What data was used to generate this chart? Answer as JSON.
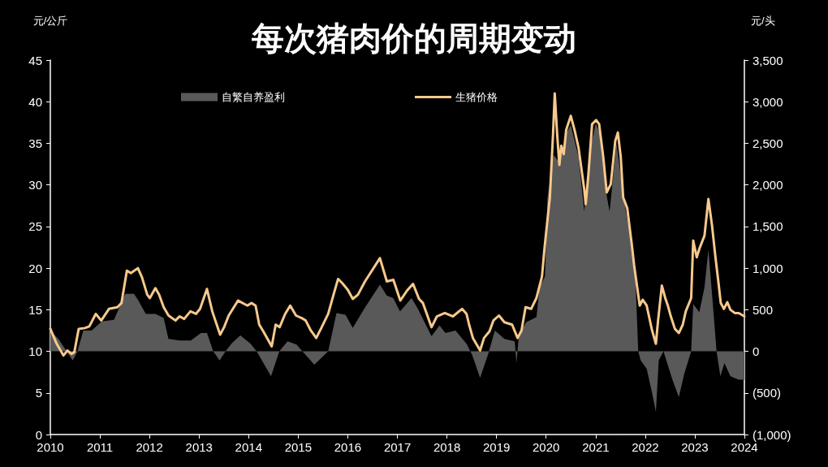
{
  "chart_data": {
    "type": "line",
    "title": "每次猪肉价的周期变动",
    "ylabel": "元/公斤",
    "y2label": "元/头",
    "legend": "top",
    "xlim": [
      "2010",
      "2024"
    ],
    "xticks": [
      "2010",
      "2011",
      "2012",
      "2013",
      "2014",
      "2015",
      "2016",
      "2017",
      "2018",
      "2019",
      "2020",
      "2021",
      "2022",
      "2023",
      "2024"
    ],
    "ylim": [
      0,
      45
    ],
    "yticks": [
      0,
      5,
      10,
      15,
      20,
      25,
      30,
      35,
      40,
      45
    ],
    "y2lim": [
      -1000,
      3500
    ],
    "y2ticks": [
      {
        "value": -1000,
        "label": "(1,000)"
      },
      {
        "value": -500,
        "label": "(500)"
      },
      0,
      500,
      {
        "value": 1000,
        "label": "1,000"
      },
      {
        "value": 1500,
        "label": "1,500"
      },
      {
        "value": 2000,
        "label": "2,000"
      },
      {
        "value": 2500,
        "label": "2,500"
      },
      {
        "value": 3000,
        "label": "3,000"
      },
      {
        "value": 3500,
        "label": "3,500"
      }
    ],
    "series": [
      {
        "name": "自繁自养盈利",
        "type": "area",
        "axis": "y2",
        "color": "#595959",
        "x": [
          "2010-01-01",
          "2010-03-01",
          "2010-05-01",
          "2010-06-15",
          "2010-07-20",
          "2010-09-01",
          "2010-11-01",
          "2011-01-15",
          "2011-04-15",
          "2011-07-07",
          "2011-09-09",
          "2011-10-08",
          "2011-12-05",
          "2012-02-14",
          "2012-04-15",
          "2012-05-20",
          "2012-08-10",
          "2012-11-01",
          "2013-01-15",
          "2013-02-28",
          "2013-04-15",
          "2013-06-01",
          "2013-07-15",
          "2013-09-01",
          "2013-11-01",
          "2014-01-15",
          "2014-03-01",
          "2014-06-15",
          "2014-08-15",
          "2014-10-15",
          "2014-12-20",
          "2015-02-01",
          "2015-04-30",
          "2015-08-10",
          "2015-10-10",
          "2015-12-15",
          "2016-02-07",
          "2016-05-01",
          "2016-08-25",
          "2016-10-15",
          "2016-12-01",
          "2017-01-20",
          "2017-04-15",
          "2017-06-01",
          "2017-09-09",
          "2017-11-07",
          "2017-12-20",
          "2018-03-05",
          "2018-05-25",
          "2018-07-05",
          "2018-09-02",
          "2018-10-30",
          "2018-12-20",
          "2019-02-28",
          "2019-05-15",
          "2019-05-28",
          "2019-06-15",
          "2019-08-07",
          "2019-10-22",
          "2019-11-14",
          "2019-12-24",
          "2020-01-11",
          "2020-02-25",
          "2020-04-08",
          "2020-05-31",
          "2020-07-01",
          "2020-08-28",
          "2020-10-08",
          "2020-11-21",
          "2021-01-01",
          "2021-02-07",
          "2021-03-15",
          "2021-04-13",
          "2021-06-03",
          "2021-07-13",
          "2021-08-11",
          "2021-09-23",
          "2021-10-22",
          "2021-11-10",
          "2021-11-28",
          "2022-01-11",
          "2022-02-20",
          "2022-03-20",
          "2022-04-10",
          "2022-05-15",
          "2022-06-05",
          "2022-07-20",
          "2022-09-05",
          "2022-10-15",
          "2022-12-05",
          "2022-12-20",
          "2023-02-03",
          "2023-03-13",
          "2023-04-11",
          "2023-05-10",
          "2023-06-10",
          "2023-07-08",
          "2023-08-07",
          "2023-09-20",
          "2023-11-20",
          "2024-01-01"
        ],
        "values": [
          250,
          150,
          0,
          -110,
          0,
          250,
          250,
          360,
          380,
          690,
          690,
          620,
          450,
          450,
          400,
          150,
          130,
          130,
          220,
          220,
          0,
          -110,
          0,
          100,
          190,
          90,
          0,
          -300,
          0,
          120,
          80,
          0,
          -160,
          0,
          460,
          440,
          280,
          510,
          800,
          670,
          640,
          480,
          640,
          510,
          180,
          310,
          220,
          250,
          90,
          -40,
          -320,
          -40,
          250,
          150,
          120,
          -140,
          200,
          350,
          410,
          770,
          900,
          1840,
          2360,
          2270,
          2630,
          2720,
          2330,
          1680,
          2430,
          2740,
          2590,
          1940,
          1680,
          2500,
          2000,
          1680,
          1290,
          800,
          0,
          -110,
          -210,
          -500,
          -730,
          -110,
          0,
          -110,
          -340,
          -550,
          -270,
          0,
          570,
          470,
          770,
          1220,
          640,
          0,
          -300,
          -140,
          -300,
          -340,
          -340
        ]
      },
      {
        "name": "生猪价格",
        "color": "#f7c98c",
        "x": [
          "2010-01-01",
          "2010-02-17",
          "2010-04-08",
          "2010-05-07",
          "2010-06-05",
          "2010-06-27",
          "2010-07-29",
          "2010-09-13",
          "2010-10-15",
          "2010-12-02",
          "2011-01-11",
          "2011-03-09",
          "2011-05-10",
          "2011-06-09",
          "2011-07-19",
          "2011-08-17",
          "2011-10-08",
          "2011-11-07",
          "2011-12-16",
          "2012-01-04",
          "2012-02-14",
          "2012-03-13",
          "2012-04-15",
          "2012-05-21",
          "2012-07-11",
          "2012-08-10",
          "2012-09-13",
          "2012-10-29",
          "2012-12-09",
          "2013-01-08",
          "2013-02-28",
          "2013-04-08",
          "2013-05-17",
          "2013-06-05",
          "2013-07-04",
          "2013-08-07",
          "2013-10-15",
          "2013-12-23",
          "2014-01-22",
          "2014-02-21",
          "2014-03-20",
          "2014-04-19",
          "2014-06-20",
          "2014-07-19",
          "2014-08-17",
          "2014-09-27",
          "2014-11-03",
          "2014-12-16",
          "2015-01-26",
          "2015-02-25",
          "2015-04-04",
          "2015-05-14",
          "2015-06-23",
          "2015-08-10",
          "2015-09-20",
          "2015-10-22",
          "2015-11-21",
          "2016-01-01",
          "2016-02-07",
          "2016-03-16",
          "2016-05-07",
          "2016-06-27",
          "2016-08-25",
          "2016-10-15",
          "2016-12-02",
          "2017-01-22",
          "2017-03-13",
          "2017-04-26",
          "2017-06-09",
          "2017-07-08",
          "2017-09-09",
          "2017-10-19",
          "2017-12-16",
          "2018-02-14",
          "2018-04-22",
          "2018-05-25",
          "2018-06-13",
          "2018-07-11",
          "2018-09-02",
          "2018-10-01",
          "2018-11-10",
          "2018-12-09",
          "2019-01-19",
          "2019-02-28",
          "2019-04-26",
          "2019-06-05",
          "2019-07-04",
          "2019-08-03",
          "2019-09-13",
          "2019-10-22",
          "2019-12-02",
          "2019-12-20",
          "2020-01-01",
          "2020-01-29",
          "2020-02-21",
          "2020-03-05",
          "2020-03-23",
          "2020-04-08",
          "2020-04-22",
          "2020-05-10",
          "2020-05-28",
          "2020-07-01",
          "2020-07-29",
          "2020-08-28",
          "2020-10-08",
          "2020-10-19",
          "2020-11-07",
          "2020-12-05",
          "2021-01-04",
          "2021-01-26",
          "2021-02-25",
          "2021-03-23",
          "2021-04-22",
          "2021-05-25",
          "2021-06-13",
          "2021-07-04",
          "2021-07-22",
          "2021-08-21",
          "2021-09-23",
          "2021-10-11",
          "2021-11-21",
          "2021-12-13",
          "2022-01-11",
          "2022-02-20",
          "2022-03-20",
          "2022-04-04",
          "2022-05-03",
          "2022-05-28",
          "2022-06-16",
          "2022-07-08",
          "2022-08-07",
          "2022-09-05",
          "2022-10-04",
          "2022-10-26",
          "2022-12-05",
          "2022-12-20",
          "2023-01-15",
          "2023-02-03",
          "2023-03-13",
          "2023-04-11",
          "2023-05-07",
          "2023-06-02",
          "2023-06-23",
          "2023-07-11",
          "2023-08-03",
          "2023-08-28",
          "2023-09-20",
          "2023-10-22",
          "2023-11-21",
          "2024-01-01"
        ],
        "values": [
          12.7,
          10.9,
          9.5,
          10.1,
          9.7,
          9.9,
          12.7,
          12.8,
          13.0,
          14.5,
          13.7,
          15.1,
          15.3,
          15.8,
          19.7,
          19.4,
          20.0,
          18.9,
          16.8,
          16.4,
          17.6,
          16.8,
          15.3,
          14.3,
          13.7,
          14.2,
          13.9,
          14.8,
          14.5,
          15.1,
          17.5,
          14.8,
          12.9,
          12.0,
          12.9,
          14.3,
          16.1,
          15.5,
          15.8,
          15.5,
          13.2,
          12.4,
          10.6,
          13.2,
          12.9,
          14.5,
          15.5,
          14.3,
          14.0,
          13.7,
          12.5,
          11.6,
          12.9,
          14.5,
          16.9,
          18.7,
          18.2,
          17.4,
          16.3,
          16.8,
          18.4,
          19.7,
          21.2,
          18.4,
          18.6,
          16.1,
          17.3,
          18.1,
          16.3,
          15.8,
          12.9,
          14.2,
          14.6,
          14.2,
          15.1,
          14.5,
          13.2,
          11.6,
          10.1,
          11.6,
          12.4,
          13.7,
          14.3,
          13.5,
          13.2,
          11.6,
          12.5,
          15.3,
          15.1,
          16.4,
          19.0,
          22.3,
          24.2,
          28.5,
          36.0,
          41.0,
          36.0,
          32.4,
          34.7,
          33.7,
          36.6,
          38.3,
          36.6,
          34.4,
          29.5,
          27.7,
          31.1,
          37.3,
          37.8,
          37.3,
          33.4,
          29.1,
          30.1,
          35.3,
          36.3,
          33.4,
          28.5,
          27.2,
          22.9,
          20.3,
          15.5,
          16.2,
          15.5,
          12.5,
          10.9,
          13.5,
          17.9,
          16.4,
          15.5,
          14.2,
          12.7,
          12.2,
          13.2,
          14.8,
          16.4,
          23.3,
          21.3,
          22.3,
          23.9,
          28.3,
          25.2,
          21.3,
          18.4,
          15.8,
          15.1,
          15.9,
          15.0,
          14.6,
          14.6,
          14.2
        ]
      }
    ]
  }
}
